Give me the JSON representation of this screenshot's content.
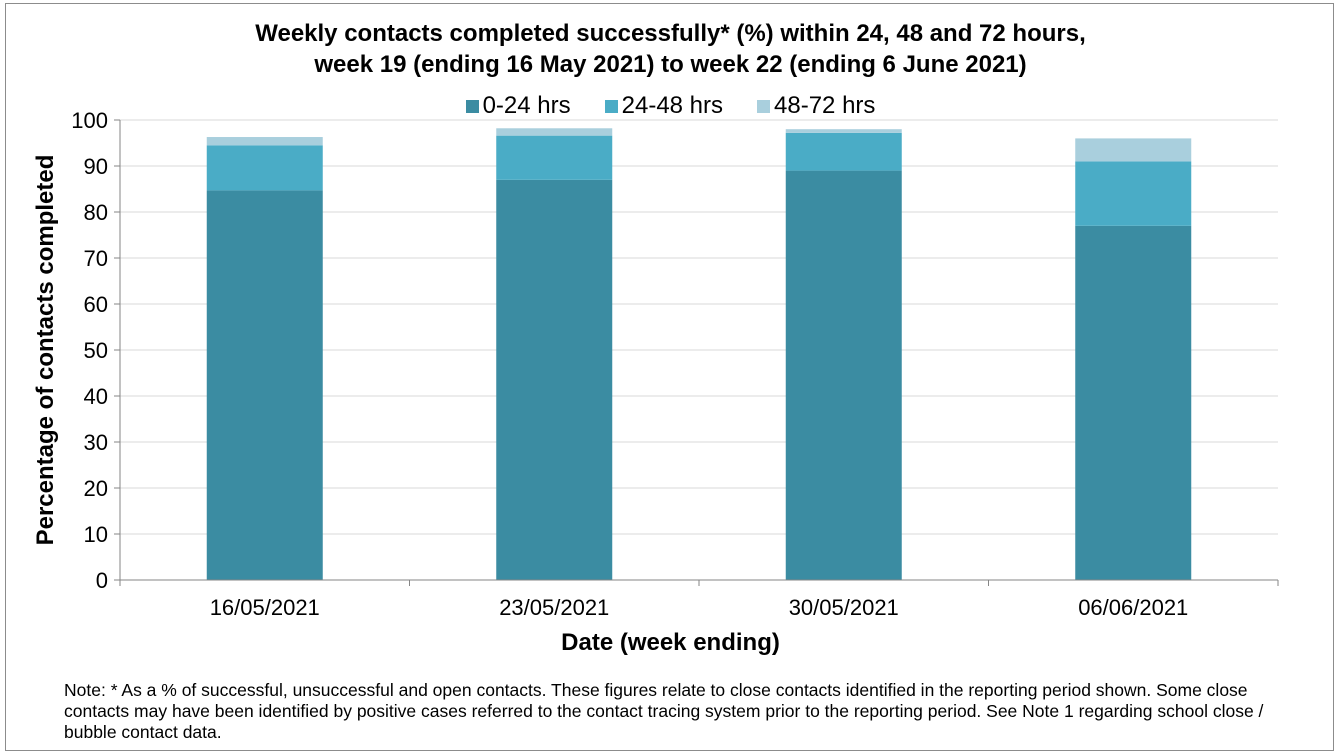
{
  "chart_data": {
    "type": "bar",
    "stacked": true,
    "title_lines": [
      "Weekly contacts completed successfully* (%) within 24, 48 and 72 hours,",
      "week 19 (ending 16 May 2021) to week 22 (ending 6 June 2021)"
    ],
    "xlabel": "Date (week ending)",
    "ylabel": "Percentage of contacts completed",
    "ylim": [
      0,
      100
    ],
    "yticks": [
      0,
      10,
      20,
      30,
      40,
      50,
      60,
      70,
      80,
      90,
      100
    ],
    "categories": [
      "16/05/2021",
      "23/05/2021",
      "30/05/2021",
      "06/06/2021"
    ],
    "series": [
      {
        "name": "0-24 hrs",
        "color": "#3b8ca2",
        "values": [
          84.7,
          87.0,
          89.0,
          77.0
        ]
      },
      {
        "name": "24-48 hrs",
        "color": "#4aacc6",
        "values": [
          9.8,
          9.6,
          8.2,
          14.0
        ]
      },
      {
        "name": "48-72 hrs",
        "color": "#a9cfdd",
        "values": [
          1.8,
          1.6,
          0.8,
          5.0
        ]
      }
    ],
    "grid": true,
    "legend_position": "top"
  },
  "note": "Note: * As a % of successful, unsuccessful and open contacts. These figures relate to close contacts identified in the reporting period shown. Some close contacts may have been identified by positive cases referred to the contact tracing system prior to the reporting period. See Note 1 regarding school close / bubble contact data."
}
